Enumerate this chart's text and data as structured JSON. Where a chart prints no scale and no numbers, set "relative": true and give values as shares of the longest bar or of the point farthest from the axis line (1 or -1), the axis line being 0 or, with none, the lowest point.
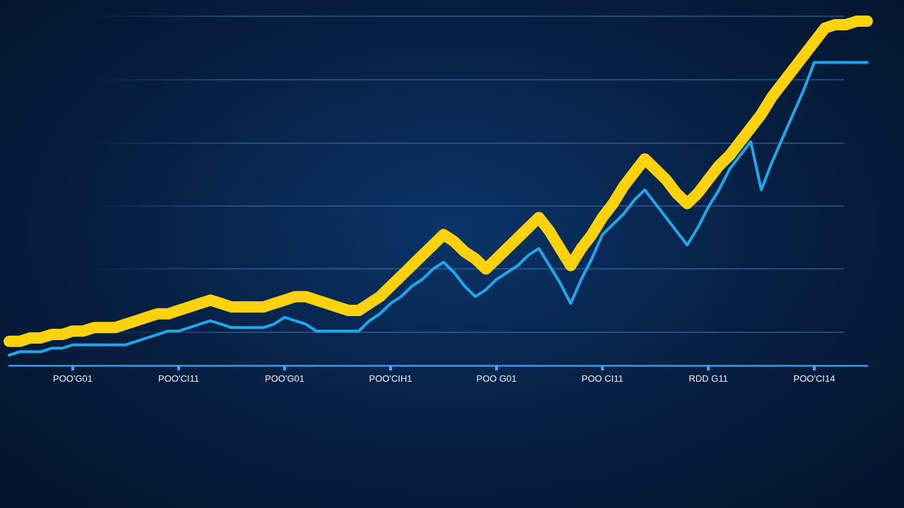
{
  "chart_data": {
    "type": "line",
    "relative": true,
    "categories": [
      null,
      null,
      null,
      null,
      null,
      null,
      "POO'G01",
      null,
      null,
      null,
      null,
      null,
      null,
      null,
      null,
      null,
      "POO'CI11",
      null,
      null,
      null,
      null,
      null,
      null,
      null,
      null,
      null,
      "POO'G01",
      null,
      null,
      null,
      null,
      null,
      null,
      null,
      null,
      null,
      "POO'CIH1",
      null,
      null,
      null,
      null,
      null,
      null,
      null,
      null,
      null,
      "POO G01",
      null,
      null,
      null,
      null,
      null,
      null,
      null,
      null,
      null,
      "POO CI11",
      null,
      null,
      null,
      null,
      null,
      null,
      null,
      null,
      null,
      "RDD G11",
      null,
      null,
      null,
      null,
      null,
      null,
      null,
      null,
      null,
      "POO'CI14",
      null,
      null,
      null,
      null,
      null
    ],
    "marker": "none",
    "line_style": "solid",
    "series": [
      {
        "color": "#fcd20c",
        "values": [
          0.07,
          0.07,
          0.08,
          0.08,
          0.09,
          0.09,
          0.1,
          0.1,
          0.11,
          0.11,
          0.11,
          0.12,
          0.13,
          0.14,
          0.15,
          0.15,
          0.16,
          0.17,
          0.18,
          0.19,
          0.18,
          0.17,
          0.17,
          0.17,
          0.17,
          0.18,
          0.19,
          0.2,
          0.2,
          0.19,
          0.18,
          0.17,
          0.16,
          0.16,
          0.18,
          0.2,
          0.23,
          0.26,
          0.29,
          0.32,
          0.35,
          0.38,
          0.36,
          0.33,
          0.31,
          0.28,
          0.31,
          0.34,
          0.37,
          0.4,
          0.43,
          0.39,
          0.34,
          0.29,
          0.34,
          0.38,
          0.43,
          0.47,
          0.52,
          0.56,
          0.6,
          0.57,
          0.54,
          0.5,
          0.47,
          0.5,
          0.54,
          0.58,
          0.61,
          0.65,
          0.69,
          0.73,
          0.78,
          0.82,
          0.86,
          0.9,
          0.94,
          0.98,
          0.99,
          0.99,
          1,
          1
        ]
      },
      {
        "color": "#1ea8ea",
        "values": [
          0.03,
          0.04,
          0.04,
          0.04,
          0.05,
          0.05,
          0.06,
          0.06,
          0.06,
          0.06,
          0.06,
          0.06,
          0.07,
          0.08,
          0.09,
          0.1,
          0.1,
          0.11,
          0.12,
          0.13,
          0.12,
          0.11,
          0.11,
          0.11,
          0.11,
          0.12,
          0.14,
          0.13,
          0.12,
          0.1,
          0.1,
          0.1,
          0.1,
          0.1,
          0.13,
          0.15,
          0.18,
          0.2,
          0.23,
          0.25,
          0.28,
          0.3,
          0.27,
          0.23,
          0.2,
          0.22,
          0.25,
          0.27,
          0.29,
          0.32,
          0.34,
          0.29,
          0.24,
          0.18,
          0.25,
          0.31,
          0.38,
          0.41,
          0.44,
          0.48,
          0.51,
          0.47,
          0.43,
          0.39,
          0.35,
          0.4,
          0.46,
          0.51,
          0.57,
          0.61,
          0.65,
          0.51,
          0.59,
          0.66,
          0.73,
          0.8,
          0.88,
          0.88,
          0.88,
          0.88,
          0.88,
          0.88
        ]
      }
    ]
  }
}
